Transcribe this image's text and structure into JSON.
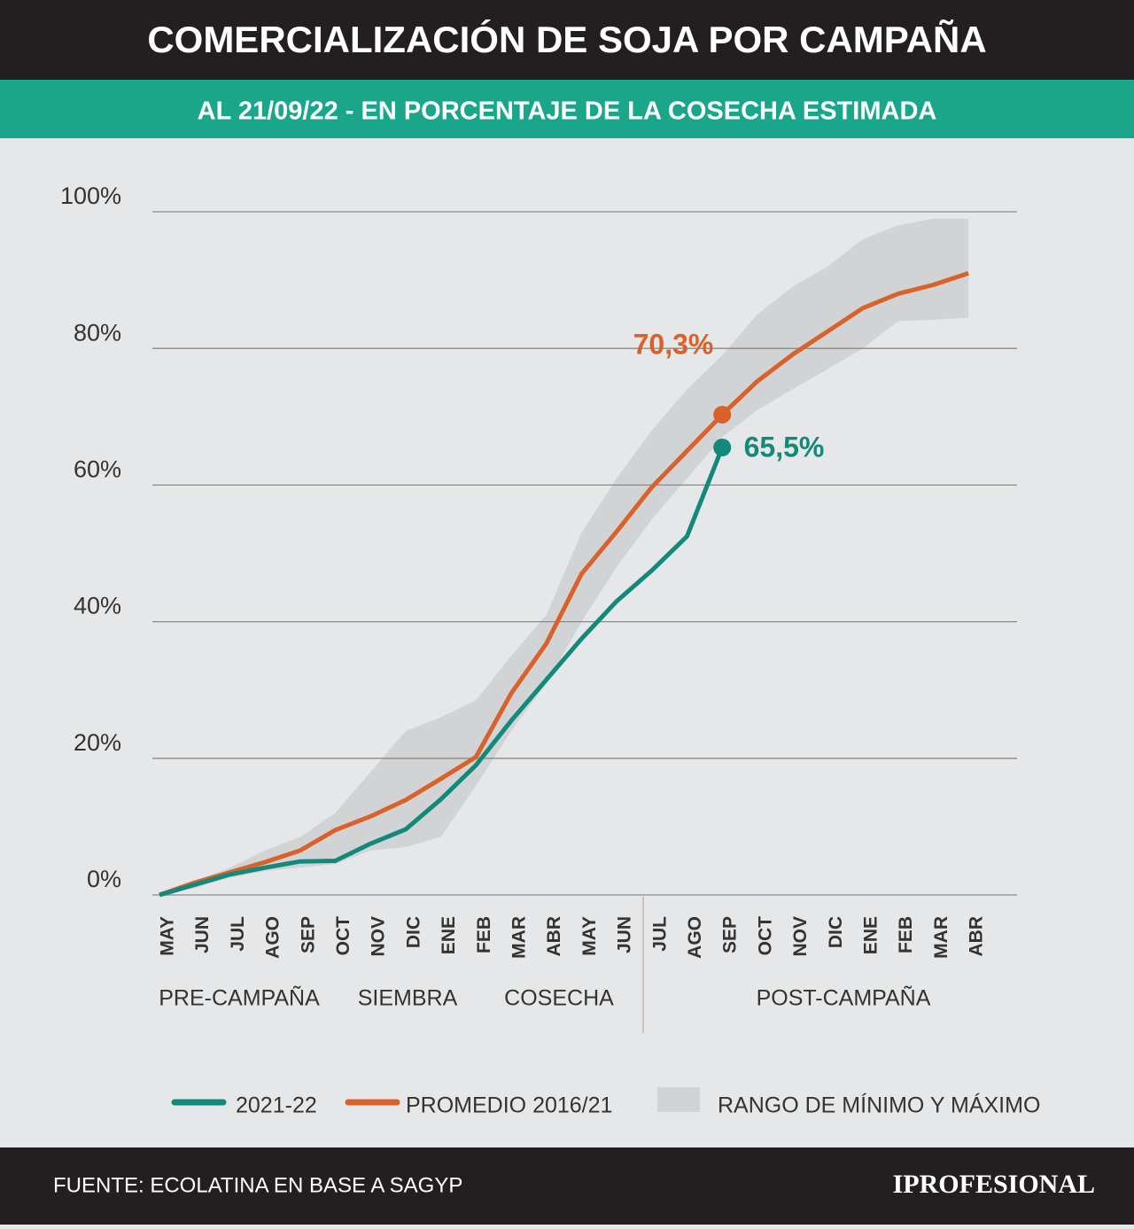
{
  "chart_data": {
    "type": "line",
    "title": "COMERCIALIZACIÓN DE SOJA POR CAMPAÑA",
    "subtitle": "AL 21/09/22 - EN PORCENTAJE DE LA COSECHA ESTIMADA",
    "categories": [
      "MAY",
      "JUN",
      "JUL",
      "AGO",
      "SEP",
      "OCT",
      "NOV",
      "DIC",
      "ENE",
      "FEB",
      "MAR",
      "ABR",
      "MAY",
      "JUN",
      "JUL",
      "AGO",
      "SEP",
      "OCT",
      "NOV",
      "DIC",
      "ENE",
      "FEB",
      "MAR",
      "ABR"
    ],
    "phases": [
      "PRE-CAMPAÑA",
      "SIEMBRA",
      "COSECHA",
      "POST-CAMPAÑA"
    ],
    "series": [
      {
        "name": "2021-22",
        "color": "#13897b",
        "values": [
          0,
          1.5,
          3,
          4,
          4.9,
          5,
          7.5,
          9.6,
          14,
          19,
          25.5,
          31.5,
          37.5,
          43,
          47.5,
          52.5,
          65.5,
          null,
          null,
          null,
          null,
          null,
          null,
          null
        ]
      },
      {
        "name": "PROMEDIO 2016/21",
        "color": "#d9622b",
        "values": [
          0,
          1.8,
          3.3,
          4.8,
          6.5,
          9.5,
          11.5,
          13.9,
          17,
          20.2,
          29.5,
          36.8,
          47,
          53.2,
          59.7,
          65,
          70.3,
          75.2,
          79.1,
          82.5,
          85.9,
          88,
          89.3,
          91
        ]
      }
    ],
    "band": {
      "name": "RANGO DE MÍNIMO Y MÁXIMO",
      "color": "#d1d3d4",
      "min": [
        0,
        1,
        2.5,
        3.5,
        4,
        4.5,
        6.5,
        7,
        8.5,
        16,
        24,
        31,
        40,
        48,
        55,
        61,
        67,
        71,
        74,
        77,
        80,
        84,
        84.2,
        84.5
      ],
      "max": [
        0,
        2,
        4,
        6.5,
        8.5,
        12,
        18,
        24,
        26,
        28.5,
        35,
        41,
        53,
        61,
        68,
        74,
        79,
        85,
        89,
        92,
        96,
        98,
        99,
        99
      ]
    },
    "annotations": [
      "70,3%",
      "65,5%"
    ],
    "ylim": [
      0,
      100
    ],
    "yticks": [
      {
        "value": 0,
        "label": "0%"
      },
      {
        "value": 20,
        "label": "20%"
      },
      {
        "value": 40,
        "label": "40%"
      },
      {
        "value": 60,
        "label": "60%"
      },
      {
        "value": 80,
        "label": "80%"
      },
      {
        "value": 100,
        "label": "100%"
      }
    ],
    "grid": true,
    "source": "FUENTE: ECOLATINA EN BASE A SAGYP",
    "brand": "IPROFESIONAL"
  }
}
